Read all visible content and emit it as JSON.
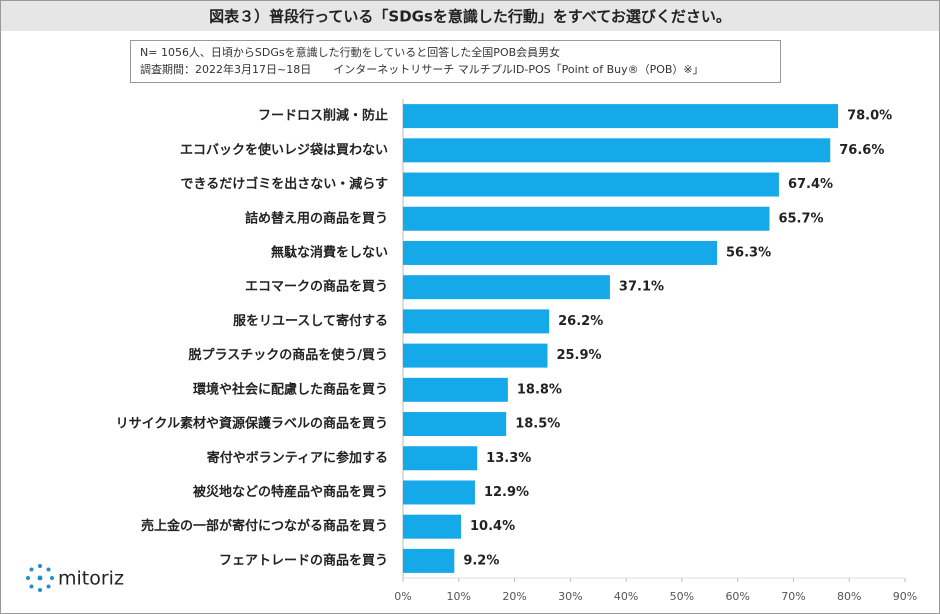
{
  "header": {
    "title": "図表３）普段行っている「SDGsを意識した行動」をすべてお選びください。"
  },
  "note": [
    "N= 1056人、日頃からSDGsを意識した行動をしていると回答した全国POB会員男女",
    "調査期間：2022年3月17日~18日　　インターネットリサーチ マルチプルID-POS「Point of Buy®（POB）※」"
  ],
  "logo": "mitoriz",
  "chart_data": {
    "type": "bar",
    "categories": [
      "フードロス削減・防止",
      "エコバックを使いレジ袋は買わない",
      "できるだけゴミを出さない・減らす",
      "詰め替え用の商品を買う",
      "無駄な消費をしない",
      "エコマークの商品を買う",
      "服をリユースして寄付する",
      "脱プラスチックの商品を使う/買う",
      "環境や社会に配慮した商品を買う",
      "リサイクル素材や資源保護ラベルの商品を買う",
      "寄付やボランティアに参加する",
      "被災地などの特産品や商品を買う",
      "売上金の一部が寄付につながる商品を買う",
      "フェアトレードの商品を買う"
    ],
    "values": [
      78.0,
      76.6,
      67.4,
      65.7,
      56.3,
      37.1,
      26.2,
      25.9,
      18.8,
      18.5,
      13.3,
      12.9,
      10.4,
      9.2
    ],
    "value_labels": [
      "78.0%",
      "76.6%",
      "67.4%",
      "65.7%",
      "56.3%",
      "37.1%",
      "26.2%",
      "25.9%",
      "18.8%",
      "18.5%",
      "13.3%",
      "12.9%",
      "10.4%",
      "9.2%"
    ],
    "color": "#16a9ea",
    "xlim": [
      0,
      90
    ],
    "xticks": [
      {
        "value": 0,
        "label": "0%"
      },
      {
        "value": 10,
        "label": "10%"
      },
      {
        "value": 20,
        "label": "20%"
      },
      {
        "value": 30,
        "label": "30%"
      },
      {
        "value": 40,
        "label": "40%"
      },
      {
        "value": 50,
        "label": "50%"
      },
      {
        "value": 60,
        "label": "60%"
      },
      {
        "value": 70,
        "label": "70%"
      },
      {
        "value": 80,
        "label": "80%"
      },
      {
        "value": 90,
        "label": "90%"
      }
    ]
  }
}
